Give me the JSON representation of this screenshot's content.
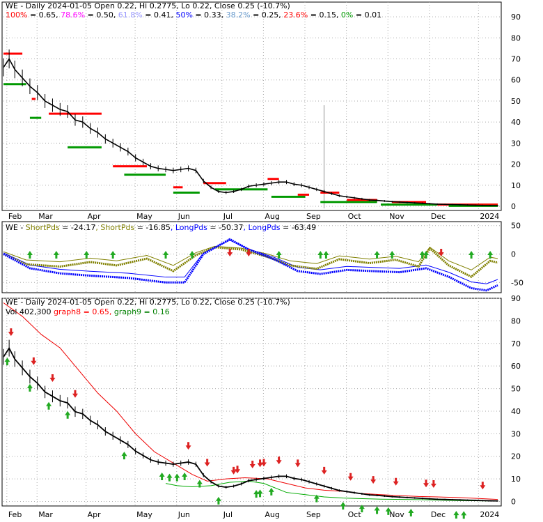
{
  "chart_data": [
    {
      "type": "line",
      "ticker": "WE",
      "header": "WE - Daily 2024-01-05 Open 0.22, Hi 0.2775, Lo 0.22, Close 0.25 (-10.7%)",
      "fib_levels": [
        {
          "pct": "100%",
          "value": "0.65",
          "color": "#ff0000"
        },
        {
          "pct": "78.6%",
          "value": "0.50",
          "color": "#ff00ff"
        },
        {
          "pct": "61.8%",
          "value": "0.41",
          "color": "#9999ff"
        },
        {
          "pct": "50%",
          "value": "0.33",
          "color": "#0000ff"
        },
        {
          "pct": "38.2%",
          "value": "0.25",
          "color": "#6699cc"
        },
        {
          "pct": "23.6%",
          "value": "0.15",
          "color": "#ff0000"
        },
        {
          "pct": "0%",
          "value": "0.01",
          "color": "#009900"
        }
      ],
      "x_labels": [
        "Feb",
        "Mar",
        "Apr",
        "May",
        "Jun",
        "Jul",
        "Aug",
        "Sep",
        "Oct",
        "Nov",
        "Dec",
        "2024"
      ],
      "y_ticks": [
        0,
        10,
        20,
        30,
        40,
        50,
        60,
        70,
        80,
        90
      ],
      "ylim": [
        -2,
        97
      ],
      "price": [
        [
          0,
          66
        ],
        [
          3,
          70
        ],
        [
          6,
          65
        ],
        [
          10,
          61
        ],
        [
          14,
          57
        ],
        [
          18,
          54
        ],
        [
          22,
          50
        ],
        [
          26,
          48
        ],
        [
          30,
          46
        ],
        [
          34,
          45
        ],
        [
          38,
          41
        ],
        [
          42,
          40
        ],
        [
          46,
          37
        ],
        [
          50,
          35
        ],
        [
          54,
          32
        ],
        [
          58,
          30
        ],
        [
          62,
          28
        ],
        [
          66,
          26
        ],
        [
          70,
          23
        ],
        [
          74,
          21
        ],
        [
          78,
          19
        ],
        [
          82,
          18
        ],
        [
          86,
          17.5
        ],
        [
          90,
          17
        ],
        [
          94,
          17.5
        ],
        [
          98,
          18
        ],
        [
          102,
          17
        ],
        [
          106,
          12
        ],
        [
          110,
          9
        ],
        [
          114,
          7
        ],
        [
          118,
          6.5
        ],
        [
          122,
          7
        ],
        [
          126,
          8
        ],
        [
          130,
          9.5
        ],
        [
          134,
          10
        ],
        [
          138,
          10.5
        ],
        [
          142,
          11
        ],
        [
          146,
          11.5
        ],
        [
          150,
          11.5
        ],
        [
          154,
          10.5
        ],
        [
          158,
          10
        ],
        [
          162,
          9
        ],
        [
          166,
          8
        ],
        [
          170,
          7
        ],
        [
          174,
          6
        ],
        [
          178,
          5
        ],
        [
          182,
          4.5
        ],
        [
          186,
          4
        ],
        [
          190,
          3.5
        ],
        [
          194,
          3
        ],
        [
          198,
          2.8
        ],
        [
          202,
          2.5
        ],
        [
          206,
          2.2
        ],
        [
          210,
          2.0
        ],
        [
          214,
          1.8
        ],
        [
          218,
          1.6
        ],
        [
          222,
          1.4
        ],
        [
          226,
          1.2
        ],
        [
          230,
          1.0
        ],
        [
          234,
          0.9
        ],
        [
          238,
          0.8
        ],
        [
          242,
          0.7
        ],
        [
          246,
          0.6
        ],
        [
          250,
          0.5
        ],
        [
          254,
          0.4
        ],
        [
          258,
          0.3
        ],
        [
          262,
          0.25
        ]
      ],
      "resistance": [
        {
          "x": [
            0,
            10
          ],
          "y": 72.5
        },
        {
          "x": [
            15,
            17
          ],
          "y": 51
        },
        {
          "x": [
            24,
            52
          ],
          "y": 44
        },
        {
          "x": [
            58,
            76
          ],
          "y": 19
        },
        {
          "x": [
            90,
            95
          ],
          "y": 9
        },
        {
          "x": [
            106,
            118
          ],
          "y": 11
        },
        {
          "x": [
            140,
            146
          ],
          "y": 13
        },
        {
          "x": [
            156,
            162
          ],
          "y": 5.5
        },
        {
          "x": [
            168,
            178
          ],
          "y": 6.5
        },
        {
          "x": [
            182,
            198
          ],
          "y": 3
        },
        {
          "x": [
            206,
            224
          ],
          "y": 2
        },
        {
          "x": [
            230,
            262
          ],
          "y": 0.8
        }
      ],
      "support": [
        {
          "x": [
            0,
            12
          ],
          "y": 58
        },
        {
          "x": [
            14,
            20
          ],
          "y": 42
        },
        {
          "x": [
            34,
            52
          ],
          "y": 28
        },
        {
          "x": [
            64,
            86
          ],
          "y": 15
        },
        {
          "x": [
            90,
            104
          ],
          "y": 6.5
        },
        {
          "x": [
            112,
            140
          ],
          "y": 8
        },
        {
          "x": [
            142,
            160
          ],
          "y": 4.5
        },
        {
          "x": [
            168,
            198
          ],
          "y": 2
        },
        {
          "x": [
            200,
            230
          ],
          "y": 0.8
        },
        {
          "x": [
            236,
            262
          ],
          "y": 0.2
        }
      ]
    },
    {
      "type": "line",
      "header_prefix": "WE - ",
      "legend": [
        {
          "name": "ShortPds",
          "value": "-24.17",
          "color": "#808000"
        },
        {
          "name": "ShortPds",
          "value": "-16.85",
          "color": "#808000"
        },
        {
          "name": "LongPds",
          "value": "-50.37",
          "color": "#0000ff"
        },
        {
          "name": "LongPds",
          "value": "-63.49",
          "color": "#0000ff"
        }
      ],
      "y_ticks": [
        50,
        0,
        -50
      ],
      "ylim": [
        -68,
        57
      ],
      "x_count": 262,
      "short_line": [
        [
          0,
          0
        ],
        [
          12,
          -18
        ],
        [
          30,
          -22
        ],
        [
          46,
          -14
        ],
        [
          60,
          -20
        ],
        [
          76,
          -8
        ],
        [
          90,
          -30
        ],
        [
          102,
          -2
        ],
        [
          112,
          12
        ],
        [
          126,
          8
        ],
        [
          140,
          -5
        ],
        [
          152,
          -20
        ],
        [
          166,
          -26
        ],
        [
          178,
          -9
        ],
        [
          194,
          -16
        ],
        [
          208,
          -10
        ],
        [
          220,
          -22
        ],
        [
          226,
          10
        ],
        [
          236,
          -20
        ],
        [
          248,
          -40
        ],
        [
          258,
          -12
        ],
        [
          262,
          -15
        ]
      ],
      "long_line": [
        [
          0,
          0
        ],
        [
          14,
          -25
        ],
        [
          30,
          -34
        ],
        [
          46,
          -38
        ],
        [
          66,
          -42
        ],
        [
          86,
          -50
        ],
        [
          96,
          -50
        ],
        [
          106,
          0
        ],
        [
          120,
          26
        ],
        [
          130,
          8
        ],
        [
          144,
          -10
        ],
        [
          156,
          -30
        ],
        [
          168,
          -35
        ],
        [
          182,
          -28
        ],
        [
          196,
          -30
        ],
        [
          210,
          -32
        ],
        [
          224,
          -25
        ],
        [
          236,
          -40
        ],
        [
          248,
          -60
        ],
        [
          256,
          -64
        ],
        [
          262,
          -55
        ]
      ],
      "up_arrows_x": [
        14,
        28,
        44,
        58,
        86,
        100,
        146,
        168,
        171,
        198,
        206,
        222,
        224,
        248,
        258
      ],
      "down_arrows_x": [
        120,
        130,
        232
      ]
    },
    {
      "type": "line",
      "header": "WE - Daily 2024-01-05 Open 0.22, Hi 0.2775, Lo 0.22, Close 0.25 (-10.7%)",
      "legend": [
        {
          "name": "Vol 402,300",
          "color": "#000000"
        },
        {
          "name": "graph8 = 0.65,",
          "color": "#ff0000"
        },
        {
          "name": "graph9 = 0.16",
          "color": "#008000"
        }
      ],
      "y_ticks": [
        0,
        10,
        20,
        30,
        40,
        50,
        60,
        70,
        80,
        90
      ],
      "ylim": [
        -2,
        90
      ],
      "ma_red": [
        [
          0,
          88
        ],
        [
          10,
          82
        ],
        [
          20,
          74
        ],
        [
          30,
          68
        ],
        [
          40,
          58
        ],
        [
          50,
          48
        ],
        [
          60,
          40
        ],
        [
          70,
          30
        ],
        [
          80,
          22
        ],
        [
          90,
          17
        ],
        [
          100,
          12
        ],
        [
          108,
          9
        ],
        [
          118,
          10
        ],
        [
          128,
          10.5
        ],
        [
          140,
          10
        ],
        [
          150,
          8
        ],
        [
          160,
          6
        ],
        [
          170,
          5
        ],
        [
          180,
          4.5
        ],
        [
          190,
          3.5
        ],
        [
          200,
          3
        ],
        [
          210,
          2.6
        ],
        [
          220,
          2.2
        ],
        [
          230,
          2
        ],
        [
          240,
          1.8
        ],
        [
          250,
          1.4
        ],
        [
          262,
          0.9
        ]
      ],
      "ma_green": [
        [
          86,
          8
        ],
        [
          92,
          7
        ],
        [
          100,
          6.5
        ],
        [
          110,
          7
        ],
        [
          120,
          8.5
        ],
        [
          130,
          9
        ],
        [
          138,
          8
        ],
        [
          150,
          4
        ],
        [
          160,
          3
        ],
        [
          170,
          2
        ],
        [
          180,
          1.5
        ],
        [
          200,
          1
        ],
        [
          220,
          0.8
        ],
        [
          240,
          0.4
        ],
        [
          262,
          0.2
        ]
      ],
      "up_arrows_x": [
        2,
        14,
        24,
        34,
        64,
        84,
        88,
        92,
        96,
        104,
        114,
        134,
        136,
        142,
        166,
        180,
        190,
        198,
        204,
        216,
        240,
        244
      ],
      "down_arrows_x": [
        4,
        16,
        26,
        38,
        98,
        108,
        122,
        124,
        132,
        136,
        138,
        146,
        156,
        170,
        184,
        196,
        208,
        224,
        228,
        254
      ]
    }
  ]
}
